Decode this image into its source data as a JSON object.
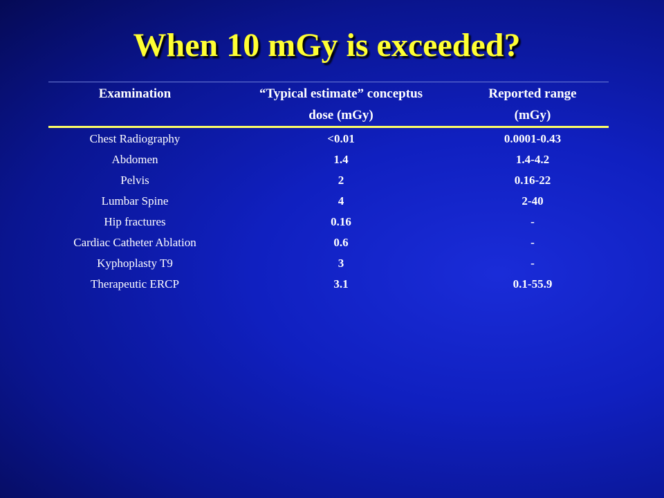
{
  "title": "When 10 mGy is exceeded?",
  "table": {
    "header": [
      [
        "Examination"
      ],
      [
        "“Typical estimate” conceptus",
        "dose (mGy)"
      ],
      [
        "Reported range",
        "(mGy)"
      ]
    ],
    "rows": [
      [
        "Chest Radiography",
        "<0.01",
        "0.0001-0.43"
      ],
      [
        "Abdomen",
        "1.4",
        "1.4-4.2"
      ],
      [
        "Pelvis",
        "2",
        "0.16-22"
      ],
      [
        "Lumbar Spine",
        "4",
        "2-40"
      ],
      [
        "Hip fractures",
        "0.16",
        "-"
      ],
      [
        "Cardiac Catheter Ablation",
        "0.6",
        "-"
      ],
      [
        "Kyphoplasty T9",
        "3",
        "-"
      ],
      [
        "Therapeutic ERCP",
        "3.1",
        "0.1-55.9"
      ]
    ]
  }
}
